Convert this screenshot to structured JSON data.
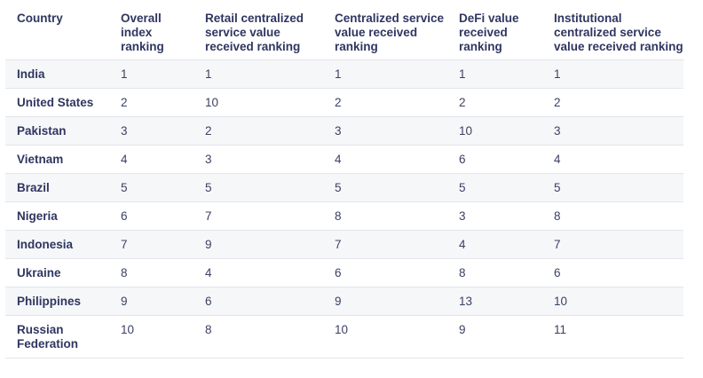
{
  "table": {
    "headers": [
      "Country",
      "Overall index ranking",
      "Retail centralized service value received ranking",
      "Centralized service value received ranking",
      "DeFi value received ranking",
      "Institutional centralized service value received ranking"
    ],
    "rows": [
      [
        "India",
        "1",
        "1",
        "1",
        "1",
        "1"
      ],
      [
        "United States",
        "2",
        "10",
        "2",
        "2",
        "2"
      ],
      [
        "Pakistan",
        "3",
        "2",
        "3",
        "10",
        "3"
      ],
      [
        "Vietnam",
        "4",
        "3",
        "4",
        "6",
        "4"
      ],
      [
        "Brazil",
        "5",
        "5",
        "5",
        "5",
        "5"
      ],
      [
        "Nigeria",
        "6",
        "7",
        "8",
        "3",
        "8"
      ],
      [
        "Indonesia",
        "7",
        "9",
        "7",
        "4",
        "7"
      ],
      [
        "Ukraine",
        "8",
        "4",
        "6",
        "8",
        "6"
      ],
      [
        "Philippines",
        "9",
        "6",
        "9",
        "13",
        "10"
      ],
      [
        "Russian Federation",
        "10",
        "8",
        "10",
        "9",
        "11"
      ]
    ]
  }
}
